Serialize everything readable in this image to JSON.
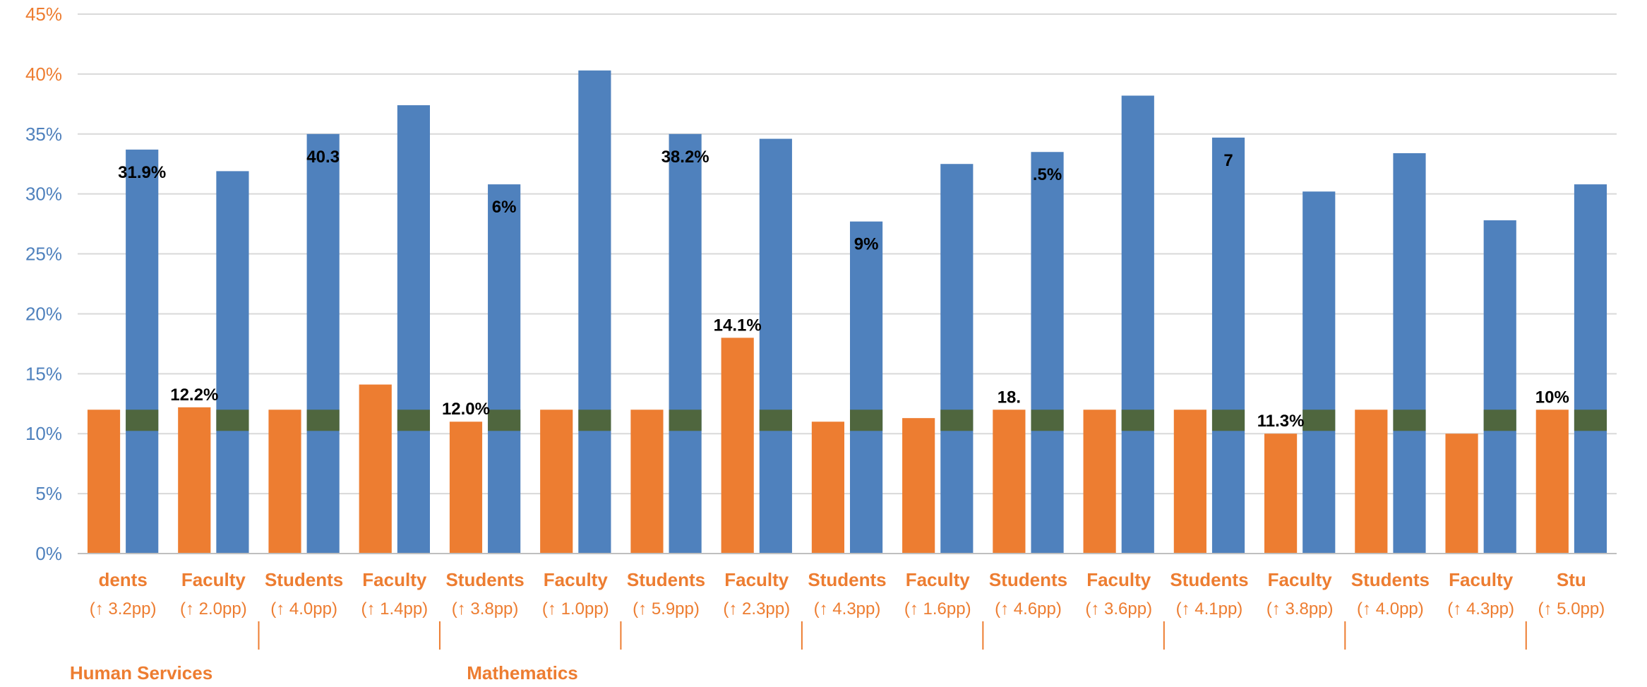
{
  "chart_data": {
    "type": "bar",
    "title": "",
    "xlabel": "",
    "ylabel": "",
    "ylim": [
      0,
      45
    ],
    "y_ticks": [
      "0%",
      "5%",
      "10%",
      "15%",
      "20%",
      "25%",
      "30%",
      "35%",
      "40%",
      "45%"
    ],
    "grid": true,
    "legend": "none",
    "categories": [
      "dents",
      "Faculty",
      "Students",
      "Faculty",
      "Students",
      "Faculty",
      "Students",
      "Faculty",
      "Students",
      "Faculty",
      "Students",
      "Faculty",
      "Students",
      "Faculty",
      "Students",
      "Faculty",
      "Stu"
    ],
    "sub_labels": [
      "(↑ 3.2pp)",
      "(↑ 2.0pp)",
      "(↑ 4.0pp)",
      "(↑ 1.4pp)",
      "(↑ 3.8pp)",
      "(↑ 1.0pp)",
      "(↑ 5.9pp)",
      "(↑ 2.3pp)",
      "(↑ 4.3pp)",
      "(↑ 1.6pp)",
      "(↑ 4.6pp)",
      "(↑ 3.6pp)",
      "(↑ 4.1pp)",
      "(↑ 3.8pp)",
      "(↑ 4.0pp)",
      "(↑ 4.3pp)",
      "(↑ 5.0pp)"
    ],
    "group_labels": [
      "Human Services",
      "Mathematics"
    ],
    "series": [
      {
        "values": [
          12.0,
          12.2,
          12.0,
          14.1,
          11.0,
          12.0,
          12.0,
          18.0,
          11.0,
          11.3,
          12.0,
          12.0,
          12.0,
          10.0,
          12.0,
          10.0,
          12.0
        ],
        "labels": [
          "12.2%",
          "12.0%",
          "14.1%",
          "18.",
          "11.3%",
          "10%"
        ]
      },
      {
        "values": [
          33.7,
          31.9,
          35.0,
          37.4,
          30.8,
          40.3,
          35.0,
          34.6,
          27.7,
          32.5,
          33.5,
          38.2,
          34.7,
          30.2,
          33.4,
          27.8,
          30.8
        ],
        "labels": [
          "31.9%",
          "40.3",
          "6%",
          "38.2%",
          "9%",
          ".5%",
          "7"
        ]
      }
    ],
    "colors": {
      "blue": "#4f81bd",
      "orange": "#ed7d31",
      "green": "#4f6228",
      "axis_text": "#595959",
      "grid": "#d9d9d9"
    }
  }
}
